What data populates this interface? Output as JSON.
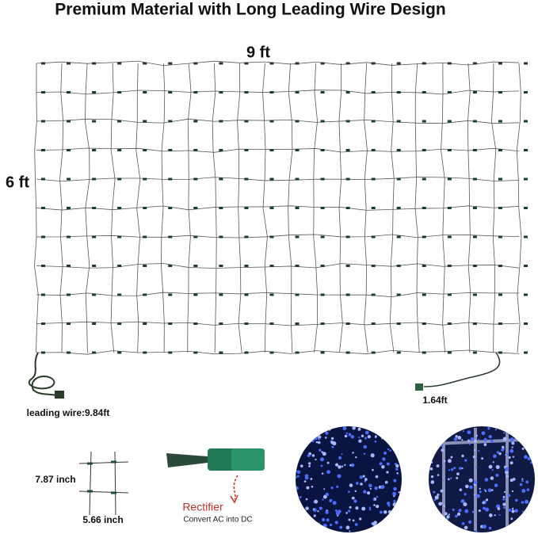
{
  "header": {
    "title": "Premium Material with Long Leading Wire Design"
  },
  "net": {
    "width_label": "9 ft",
    "height_label": "6 ft",
    "leading_wire_label": "leading wire:9.84ft",
    "tail_wire_label": "1.64ft"
  },
  "mesh": {
    "height_label": "7.87 inch",
    "width_label": "5.66 inch"
  },
  "rectifier": {
    "label": "Rectifier",
    "description": "Convert AC into DC"
  }
}
